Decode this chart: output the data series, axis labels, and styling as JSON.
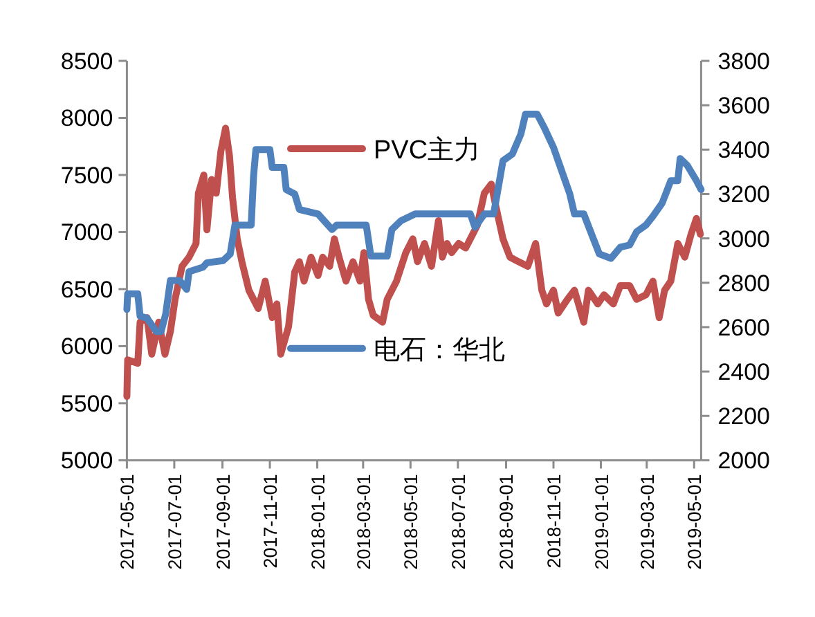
{
  "chart_data": {
    "type": "line",
    "legend": "center",
    "line_style": "solid",
    "marker": "none",
    "xlim": [
      "2017-05-01",
      "2019-05-10"
    ],
    "xticks": [
      "2017-05-01",
      "2017-07-01",
      "2017-09-01",
      "2017-11-01",
      "2018-01-01",
      "2018-03-01",
      "2018-05-01",
      "2018-07-01",
      "2018-09-01",
      "2018-11-01",
      "2019-01-01",
      "2019-03-01",
      "2019-05-01"
    ],
    "ylim": [
      5000,
      8500
    ],
    "yticks": [
      5000,
      5500,
      6000,
      6500,
      7000,
      7500,
      8000,
      8500
    ],
    "y2lim": [
      2000,
      3800
    ],
    "y2ticks": [
      2000,
      2200,
      2400,
      2600,
      2800,
      3000,
      3200,
      3400,
      3600,
      3800
    ],
    "series": [
      {
        "name": "PVC主力",
        "color": "#c0504d",
        "x": [
          "2017-05-01",
          "2017-05-02",
          "2017-05-15",
          "2017-05-18",
          "2017-05-27",
          "2017-06-02",
          "2017-06-11",
          "2017-06-19",
          "2017-06-26",
          "2017-07-02",
          "2017-07-11",
          "2017-07-20",
          "2017-07-29",
          "2017-08-01",
          "2017-08-08",
          "2017-08-12",
          "2017-08-18",
          "2017-08-24",
          "2017-08-30",
          "2017-09-05",
          "2017-09-10",
          "2017-09-14",
          "2017-09-20",
          "2017-09-26",
          "2017-10-05",
          "2017-10-17",
          "2017-10-26",
          "2017-11-04",
          "2017-11-10",
          "2017-11-15",
          "2017-11-25",
          "2017-12-03",
          "2017-12-09",
          "2017-12-15",
          "2017-12-24",
          "2018-01-02",
          "2018-01-08",
          "2018-01-17",
          "2018-01-23",
          "2018-01-29",
          "2018-02-07",
          "2018-02-16",
          "2018-02-25",
          "2018-03-02",
          "2018-03-08",
          "2018-03-14",
          "2018-03-26",
          "2018-04-01",
          "2018-04-13",
          "2018-04-25",
          "2018-05-04",
          "2018-05-10",
          "2018-05-19",
          "2018-05-28",
          "2018-06-06",
          "2018-06-11",
          "2018-06-17",
          "2018-06-23",
          "2018-07-02",
          "2018-07-11",
          "2018-07-17",
          "2018-07-26",
          "2018-08-04",
          "2018-08-13",
          "2018-08-19",
          "2018-08-28",
          "2018-09-06",
          "2018-09-17",
          "2018-09-29",
          "2018-10-09",
          "2018-10-17",
          "2018-10-23",
          "2018-11-01",
          "2018-11-07",
          "2018-11-19",
          "2018-11-28",
          "2018-12-10",
          "2018-12-16",
          "2018-12-28",
          "2019-01-05",
          "2019-01-17",
          "2019-01-26",
          "2019-02-07",
          "2019-02-16",
          "2019-02-28",
          "2019-03-09",
          "2019-03-17",
          "2019-03-24",
          "2019-04-01",
          "2019-04-10",
          "2019-04-19",
          "2019-04-27",
          "2019-05-04",
          "2019-05-09"
        ],
        "values": [
          5560,
          5880,
          5850,
          6210,
          6250,
          5930,
          6210,
          5930,
          6130,
          6410,
          6700,
          6780,
          6900,
          7340,
          7500,
          7020,
          7460,
          7340,
          7710,
          7910,
          7670,
          7300,
          6940,
          6740,
          6490,
          6330,
          6570,
          6250,
          6370,
          5930,
          6170,
          6650,
          6740,
          6570,
          6780,
          6620,
          6780,
          6700,
          6940,
          6780,
          6570,
          6740,
          6570,
          6820,
          6410,
          6270,
          6210,
          6410,
          6570,
          6820,
          6940,
          6740,
          6900,
          6700,
          7100,
          6780,
          6900,
          6820,
          6900,
          6860,
          6940,
          7060,
          7340,
          7420,
          7220,
          6940,
          6780,
          6740,
          6700,
          6900,
          6490,
          6370,
          6490,
          6290,
          6410,
          6490,
          6210,
          6490,
          6370,
          6450,
          6370,
          6530,
          6530,
          6410,
          6450,
          6570,
          6250,
          6490,
          6570,
          6900,
          6780,
          6980,
          7120,
          6980
        ]
      },
      {
        "name": "电石：华北",
        "color": "#4f81bd",
        "axis": "y2",
        "x": [
          "2017-05-01",
          "2017-05-02",
          "2017-05-15",
          "2017-05-18",
          "2017-05-27",
          "2017-06-08",
          "2017-06-14",
          "2017-06-20",
          "2017-06-26",
          "2017-07-08",
          "2017-07-17",
          "2017-07-20",
          "2017-08-07",
          "2017-08-12",
          "2017-09-02",
          "2017-09-11",
          "2017-09-17",
          "2017-10-08",
          "2017-10-11",
          "2017-10-14",
          "2017-11-01",
          "2017-11-04",
          "2017-11-19",
          "2017-11-22",
          "2017-12-03",
          "2017-12-09",
          "2018-01-02",
          "2018-01-20",
          "2018-01-26",
          "2018-03-05",
          "2018-03-11",
          "2018-04-01",
          "2018-04-07",
          "2018-04-19",
          "2018-05-07",
          "2018-07-17",
          "2018-07-23",
          "2018-08-04",
          "2018-08-16",
          "2018-08-28",
          "2018-09-09",
          "2018-09-20",
          "2018-09-26",
          "2018-10-11",
          "2018-10-20",
          "2018-11-01",
          "2018-11-10",
          "2018-11-22",
          "2018-11-28",
          "2018-12-10",
          "2018-12-21",
          "2018-12-30",
          "2019-01-14",
          "2019-01-26",
          "2019-02-07",
          "2019-02-16",
          "2019-02-28",
          "2019-03-09",
          "2019-03-21",
          "2019-04-01",
          "2019-04-10",
          "2019-04-13",
          "2019-04-22",
          "2019-05-04",
          "2019-05-10"
        ],
        "values": [
          2680,
          2750,
          2750,
          2650,
          2640,
          2580,
          2580,
          2660,
          2810,
          2810,
          2770,
          2850,
          2870,
          2890,
          2900,
          2930,
          3060,
          3060,
          3280,
          3400,
          3400,
          3320,
          3320,
          3220,
          3200,
          3130,
          3110,
          3040,
          3060,
          3060,
          2920,
          2920,
          3040,
          3080,
          3110,
          3110,
          3050,
          3110,
          3110,
          3350,
          3380,
          3470,
          3560,
          3560,
          3500,
          3410,
          3320,
          3200,
          3110,
          3110,
          3010,
          2930,
          2910,
          2960,
          2970,
          3030,
          3060,
          3100,
          3160,
          3260,
          3260,
          3360,
          3330,
          3260,
          3220
        ]
      }
    ]
  }
}
